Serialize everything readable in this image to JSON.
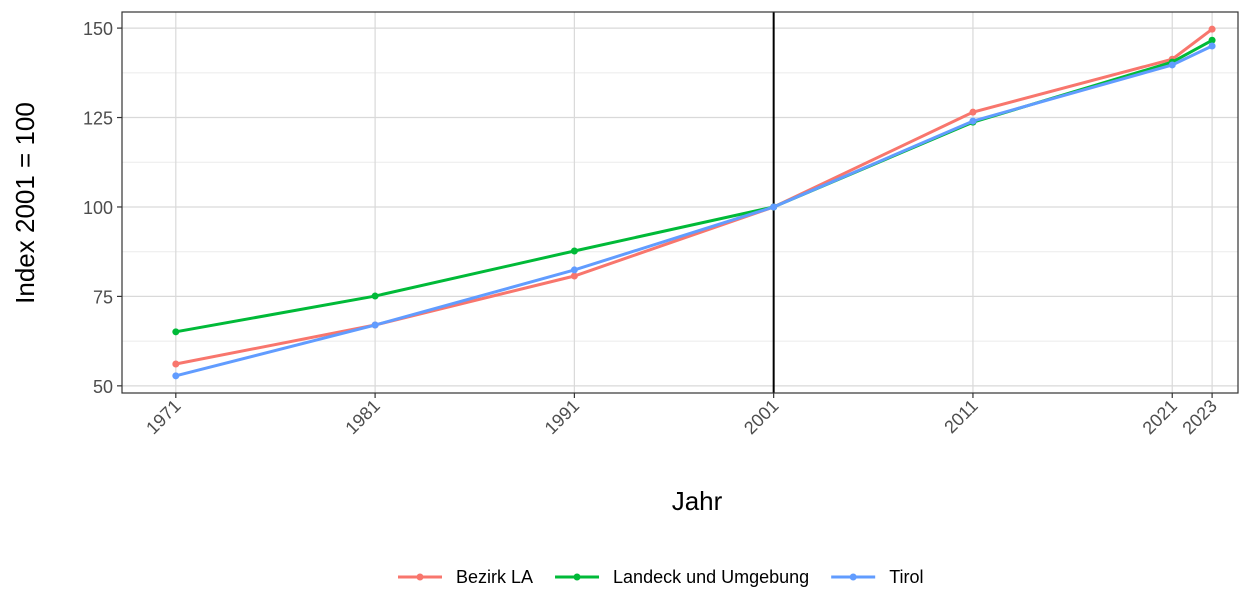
{
  "chart_data": {
    "type": "line",
    "x": [
      1971,
      1981,
      1991,
      2001,
      2011,
      2021,
      2023
    ],
    "series": [
      {
        "name": "Bezirk LA",
        "color": "#F8766D",
        "values": [
          56.1,
          67,
          80.7,
          100,
          126.5,
          141.3,
          149.7
        ]
      },
      {
        "name": "Landeck und Umgebung",
        "color": "#00BA38",
        "values": [
          65.1,
          75.1,
          87.7,
          100,
          123.7,
          140.5,
          146.6
        ]
      },
      {
        "name": "Tirol",
        "color": "#619CFF",
        "values": [
          52.8,
          67,
          82.4,
          100,
          124,
          139.7,
          145
        ]
      }
    ],
    "xlabel": "Jahr",
    "ylabel": "Index 2001 = 100",
    "xlim": [
      1968.3,
      2024.3
    ],
    "xticks": [
      1971,
      1981,
      1991,
      2001,
      2011,
      2021,
      2023
    ],
    "ylim": [
      48,
      154.5
    ],
    "yticks": [
      50,
      75,
      100,
      125,
      150
    ],
    "vline": 2001,
    "grid": true,
    "legend": "bottom"
  }
}
